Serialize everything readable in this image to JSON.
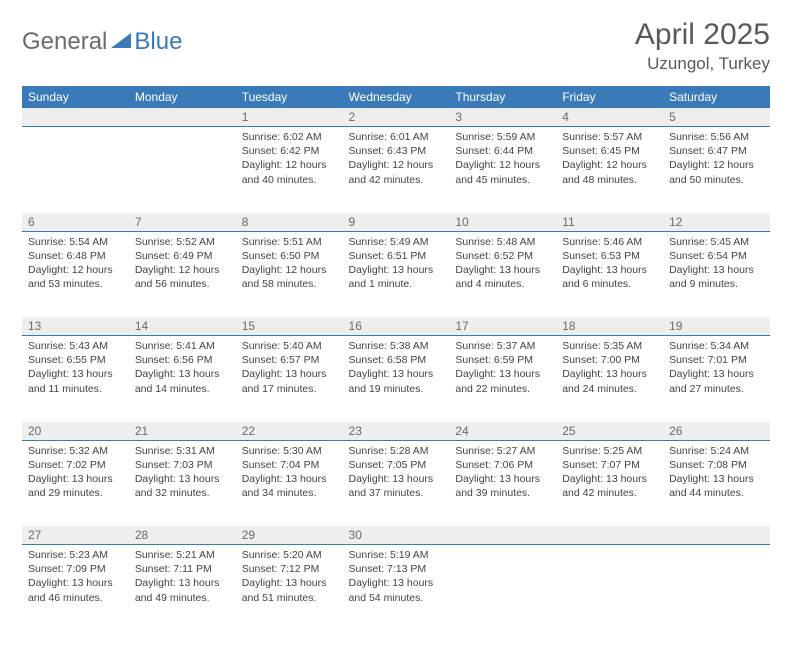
{
  "brand": {
    "part1": "General",
    "part2": "Blue"
  },
  "title": "April 2025",
  "location": "Uzungol, Turkey",
  "colors": {
    "header_bg": "#3a7ab8",
    "header_text": "#ffffff",
    "daynum_bg": "#eeeeee",
    "border": "#3a7ab8",
    "body_text": "#444444",
    "title_text": "#5a5a5a"
  },
  "day_headers": [
    "Sunday",
    "Monday",
    "Tuesday",
    "Wednesday",
    "Thursday",
    "Friday",
    "Saturday"
  ],
  "weeks": [
    [
      null,
      null,
      {
        "n": "1",
        "sr": "6:02 AM",
        "ss": "6:42 PM",
        "dl": "12 hours and 40 minutes."
      },
      {
        "n": "2",
        "sr": "6:01 AM",
        "ss": "6:43 PM",
        "dl": "12 hours and 42 minutes."
      },
      {
        "n": "3",
        "sr": "5:59 AM",
        "ss": "6:44 PM",
        "dl": "12 hours and 45 minutes."
      },
      {
        "n": "4",
        "sr": "5:57 AM",
        "ss": "6:45 PM",
        "dl": "12 hours and 48 minutes."
      },
      {
        "n": "5",
        "sr": "5:56 AM",
        "ss": "6:47 PM",
        "dl": "12 hours and 50 minutes."
      }
    ],
    [
      {
        "n": "6",
        "sr": "5:54 AM",
        "ss": "6:48 PM",
        "dl": "12 hours and 53 minutes."
      },
      {
        "n": "7",
        "sr": "5:52 AM",
        "ss": "6:49 PM",
        "dl": "12 hours and 56 minutes."
      },
      {
        "n": "8",
        "sr": "5:51 AM",
        "ss": "6:50 PM",
        "dl": "12 hours and 58 minutes."
      },
      {
        "n": "9",
        "sr": "5:49 AM",
        "ss": "6:51 PM",
        "dl": "13 hours and 1 minute."
      },
      {
        "n": "10",
        "sr": "5:48 AM",
        "ss": "6:52 PM",
        "dl": "13 hours and 4 minutes."
      },
      {
        "n": "11",
        "sr": "5:46 AM",
        "ss": "6:53 PM",
        "dl": "13 hours and 6 minutes."
      },
      {
        "n": "12",
        "sr": "5:45 AM",
        "ss": "6:54 PM",
        "dl": "13 hours and 9 minutes."
      }
    ],
    [
      {
        "n": "13",
        "sr": "5:43 AM",
        "ss": "6:55 PM",
        "dl": "13 hours and 11 minutes."
      },
      {
        "n": "14",
        "sr": "5:41 AM",
        "ss": "6:56 PM",
        "dl": "13 hours and 14 minutes."
      },
      {
        "n": "15",
        "sr": "5:40 AM",
        "ss": "6:57 PM",
        "dl": "13 hours and 17 minutes."
      },
      {
        "n": "16",
        "sr": "5:38 AM",
        "ss": "6:58 PM",
        "dl": "13 hours and 19 minutes."
      },
      {
        "n": "17",
        "sr": "5:37 AM",
        "ss": "6:59 PM",
        "dl": "13 hours and 22 minutes."
      },
      {
        "n": "18",
        "sr": "5:35 AM",
        "ss": "7:00 PM",
        "dl": "13 hours and 24 minutes."
      },
      {
        "n": "19",
        "sr": "5:34 AM",
        "ss": "7:01 PM",
        "dl": "13 hours and 27 minutes."
      }
    ],
    [
      {
        "n": "20",
        "sr": "5:32 AM",
        "ss": "7:02 PM",
        "dl": "13 hours and 29 minutes."
      },
      {
        "n": "21",
        "sr": "5:31 AM",
        "ss": "7:03 PM",
        "dl": "13 hours and 32 minutes."
      },
      {
        "n": "22",
        "sr": "5:30 AM",
        "ss": "7:04 PM",
        "dl": "13 hours and 34 minutes."
      },
      {
        "n": "23",
        "sr": "5:28 AM",
        "ss": "7:05 PM",
        "dl": "13 hours and 37 minutes."
      },
      {
        "n": "24",
        "sr": "5:27 AM",
        "ss": "7:06 PM",
        "dl": "13 hours and 39 minutes."
      },
      {
        "n": "25",
        "sr": "5:25 AM",
        "ss": "7:07 PM",
        "dl": "13 hours and 42 minutes."
      },
      {
        "n": "26",
        "sr": "5:24 AM",
        "ss": "7:08 PM",
        "dl": "13 hours and 44 minutes."
      }
    ],
    [
      {
        "n": "27",
        "sr": "5:23 AM",
        "ss": "7:09 PM",
        "dl": "13 hours and 46 minutes."
      },
      {
        "n": "28",
        "sr": "5:21 AM",
        "ss": "7:11 PM",
        "dl": "13 hours and 49 minutes."
      },
      {
        "n": "29",
        "sr": "5:20 AM",
        "ss": "7:12 PM",
        "dl": "13 hours and 51 minutes."
      },
      {
        "n": "30",
        "sr": "5:19 AM",
        "ss": "7:13 PM",
        "dl": "13 hours and 54 minutes."
      },
      null,
      null,
      null
    ]
  ]
}
